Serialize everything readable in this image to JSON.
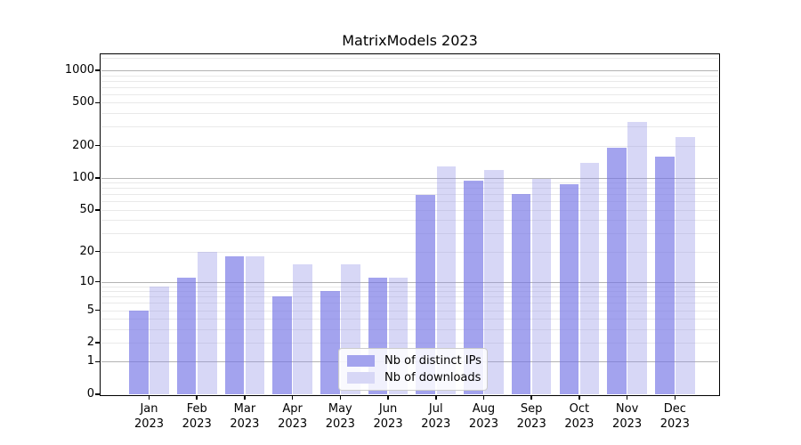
{
  "title": "MatrixModels 2023",
  "chart_data": {
    "type": "bar",
    "title": "MatrixModels 2023",
    "x_year": "2023",
    "categories": [
      "Jan",
      "Feb",
      "Mar",
      "Apr",
      "May",
      "Jun",
      "Jul",
      "Aug",
      "Sep",
      "Oct",
      "Nov",
      "Dec"
    ],
    "series": [
      {
        "name": "Nb of distinct IPs",
        "color_hex": "#a3a3ee",
        "fill_rgba": "rgba(116,116,229,0.66)",
        "values": [
          5,
          11,
          18,
          7,
          8,
          11,
          69,
          95,
          70,
          87,
          190,
          159
        ]
      },
      {
        "name": "Nb of downloads",
        "color_hex": "#d7d7f6",
        "fill_rgba": "rgba(145,145,230,0.36)",
        "values": [
          9,
          20,
          18,
          15,
          15,
          11,
          127,
          118,
          98,
          138,
          330,
          240
        ]
      }
    ],
    "yscale": "log10(1+y)",
    "yticks": [
      0,
      1,
      2,
      5,
      10,
      20,
      50,
      100,
      200,
      500,
      1000
    ],
    "ylim": [
      0,
      1410
    ],
    "xlabel": "",
    "ylabel": "",
    "grid": "horizontal",
    "grid_major_values": [
      1,
      10,
      100,
      1000
    ],
    "legend_position": "lower center"
  },
  "colors": {
    "grid_major": "#b3b3b3",
    "grid_minor": "#e9e9e9",
    "spine": "#000000",
    "background": "#ffffff"
  }
}
